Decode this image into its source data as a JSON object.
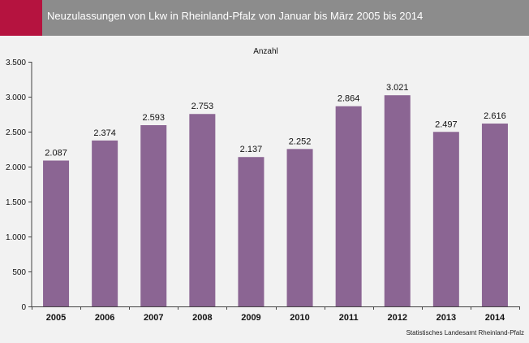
{
  "header": {
    "title": "Neuzulassungen von Lkw in Rheinland-Pfalz von Januar bis März 2005 bis 2014"
  },
  "source": "Statistisches Landesamt Rheinland-Pfalz",
  "colors": {
    "header_bg": "#8c8c8c",
    "accent": "#b5133f",
    "bar": "#8b6593",
    "background": "#f2f2f2"
  },
  "chart_data": {
    "type": "bar",
    "title": "",
    "series_label": "Anzahl",
    "xlabel": "",
    "ylabel": "",
    "categories": [
      "2005",
      "2006",
      "2007",
      "2008",
      "2009",
      "2010",
      "2011",
      "2012",
      "2013",
      "2014"
    ],
    "values": [
      2087,
      2374,
      2593,
      2753,
      2137,
      2252,
      2864,
      3021,
      2497,
      2616
    ],
    "value_labels": [
      "2.087",
      "2.374",
      "2.593",
      "2.753",
      "2.137",
      "2.252",
      "2.864",
      "3.021",
      "2.497",
      "2.616"
    ],
    "ylim": [
      0,
      3500
    ],
    "yticks": [
      0,
      500,
      1000,
      1500,
      2000,
      2500,
      3000,
      3500
    ],
    "ytick_labels": [
      "0",
      "500",
      "1.000",
      "1.500",
      "2.000",
      "2.500",
      "3.000",
      "3.500"
    ],
    "grid": false,
    "legend": "none"
  }
}
